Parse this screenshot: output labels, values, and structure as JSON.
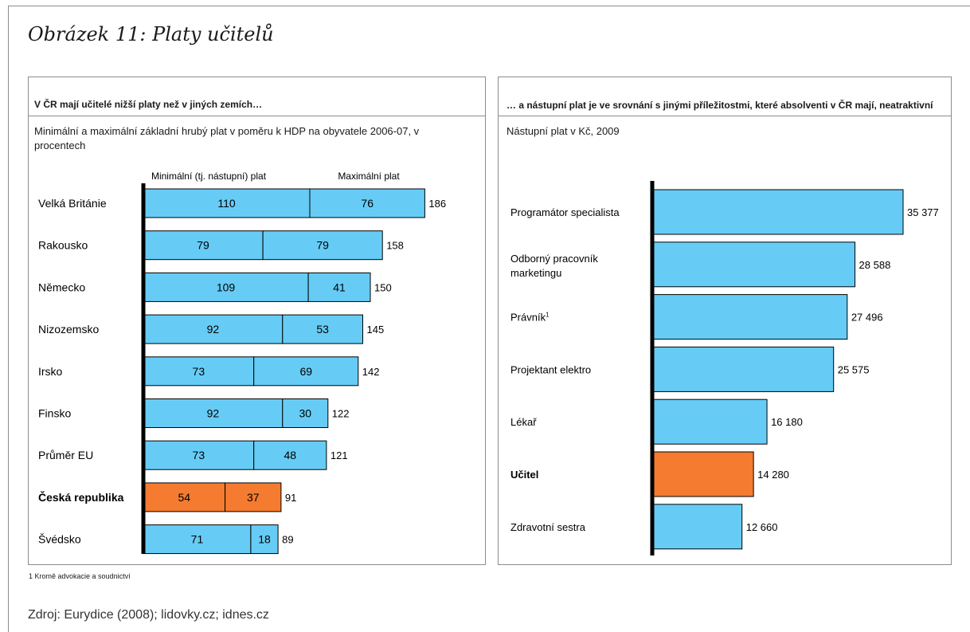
{
  "figure": {
    "title": "Obrázek 11: Platy učitelů",
    "footnote": "1  Kromě advokacie a soudnictví",
    "source": "Zdroj: Eurydice (2008); lidovky.cz; idnes.cz"
  },
  "colors": {
    "bar": "#66ccf5",
    "highlight": "#f47b30",
    "axis": "#000000",
    "border": "#8c8c8c"
  },
  "chart_data": [
    {
      "type": "bar",
      "orientation": "horizontal",
      "stacked": true,
      "heading": "V ČR mají učitelé nižší platy než v jiných zemích…",
      "subtitle": "Minimální a maximální základní hrubý plat v poměru k HDP na obyvatele 2006-07, v procentech",
      "series_labels": [
        "Minimální (tj. nástupní) plat",
        "Maximální plat"
      ],
      "categories": [
        "Velká Británie",
        "Rakousko",
        "Německo",
        "Nizozemsko",
        "Irsko",
        "Finsko",
        "Průměr EU",
        "Česká republika",
        "Švédsko"
      ],
      "series": [
        {
          "values": [
            110,
            79,
            109,
            92,
            73,
            92,
            73,
            54,
            71
          ]
        },
        {
          "values": [
            76,
            79,
            41,
            53,
            69,
            30,
            48,
            37,
            18
          ]
        }
      ],
      "totals": [
        "186",
        "158",
        "150",
        "145",
        "142",
        "122",
        "121",
        "91",
        "89"
      ],
      "highlight_index": 7,
      "grid": false
    },
    {
      "type": "bar",
      "orientation": "horizontal",
      "stacked": false,
      "heading": "… a nástupní plat je ve srovnání s jinými příležitostmi, které absolventi v ČR mají, neatraktivní",
      "subtitle": "Nástupní plat v Kč, 2009",
      "categories": [
        {
          "lines": [
            "Programátor specialista"
          ]
        },
        {
          "lines": [
            "Odborný pracovník",
            "marketingu"
          ]
        },
        {
          "lines": [
            "Právník"
          ],
          "sup": "1"
        },
        {
          "lines": [
            "Projektant elektro"
          ]
        },
        {
          "lines": [
            "Lékař"
          ]
        },
        {
          "lines": [
            "Učitel"
          ]
        },
        {
          "lines": [
            "Zdravotní sestra"
          ]
        }
      ],
      "values": [
        35377,
        28588,
        27496,
        25575,
        16180,
        14280,
        12660
      ],
      "value_labels": [
        "35 377",
        "28 588",
        "27 496",
        "25 575",
        "16 180",
        "14 280",
        "12 660"
      ],
      "highlight_index": 5,
      "grid": false
    }
  ]
}
